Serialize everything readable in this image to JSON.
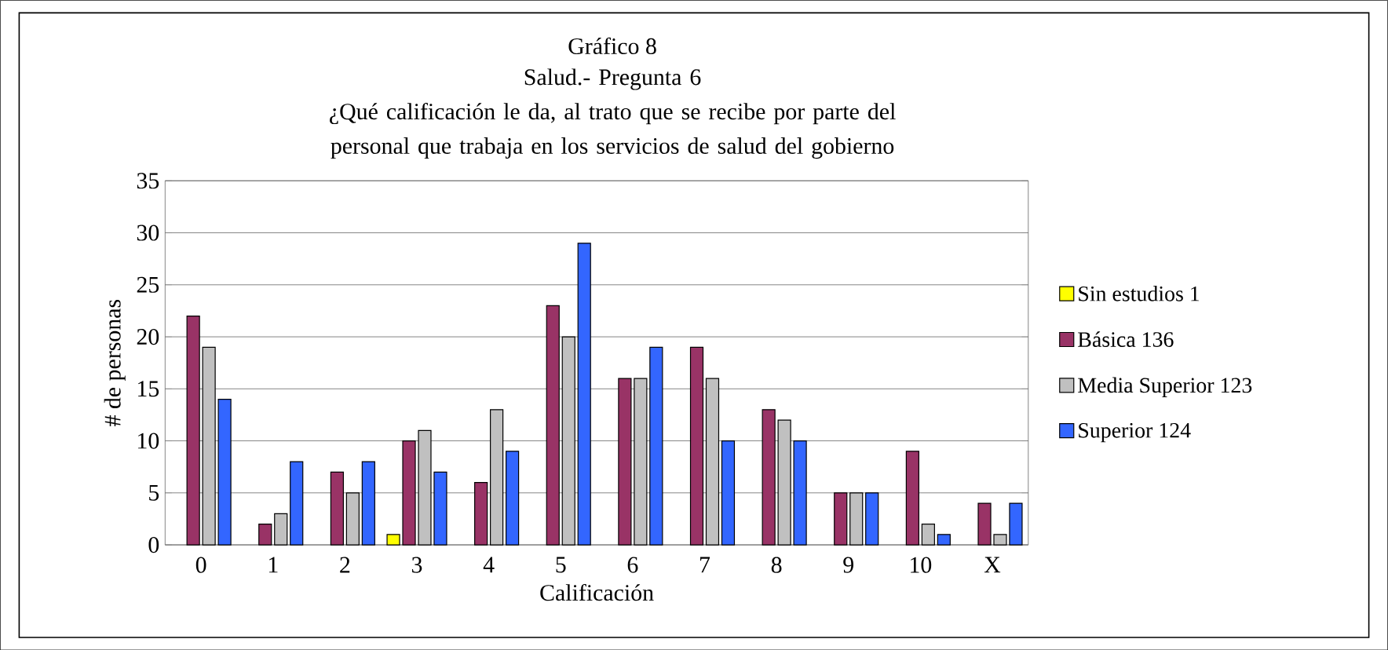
{
  "chart_data": {
    "type": "bar",
    "title": "Gráfico 8",
    "subtitle": "Salud.- Pregunta 6\n¿Qué calificación le da, al trato que se recibe por parte del personal que trabaja en los servicios de salud del gobierno",
    "xlabel": "Calificación",
    "ylabel": "# de personas",
    "categories": [
      "0",
      "1",
      "2",
      "3",
      "4",
      "5",
      "6",
      "7",
      "8",
      "9",
      "10",
      "X"
    ],
    "series": [
      {
        "name": "Sin estudios 1",
        "color": "#ffff00",
        "values": [
          null,
          null,
          null,
          1,
          null,
          null,
          null,
          null,
          null,
          null,
          null,
          null
        ]
      },
      {
        "name": "Básica 136",
        "color": "#993366",
        "values": [
          22,
          2,
          7,
          10,
          6,
          23,
          16,
          19,
          13,
          5,
          9,
          4
        ]
      },
      {
        "name": "Media Superior 123",
        "color": "#c0c0c0",
        "values": [
          19,
          3,
          5,
          11,
          13,
          20,
          16,
          16,
          12,
          5,
          2,
          1
        ]
      },
      {
        "name": "Superior 124",
        "color": "#3366ff",
        "values": [
          14,
          8,
          8,
          7,
          9,
          29,
          19,
          10,
          10,
          5,
          1,
          4
        ]
      }
    ],
    "ylim": [
      0,
      35
    ],
    "yticks": [
      0,
      5,
      10,
      15,
      20,
      25,
      30,
      35
    ],
    "grid": "y",
    "legend": "right"
  }
}
